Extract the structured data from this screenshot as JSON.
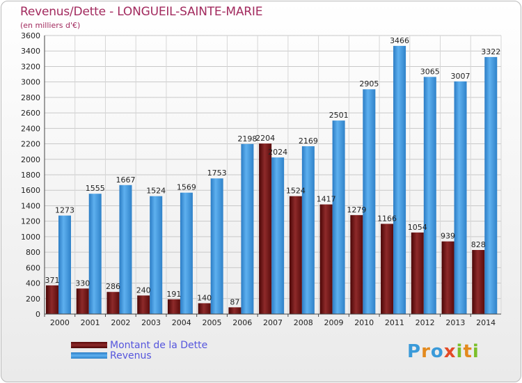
{
  "title": "Revenus/Dette - LONGUEIL-SAINTE-MARIE",
  "subtitle": "(en milliers d'€)",
  "chart_data": {
    "type": "bar",
    "categories": [
      "2000",
      "2001",
      "2002",
      "2003",
      "2004",
      "2005",
      "2006",
      "2007",
      "2008",
      "2009",
      "2010",
      "2011",
      "2012",
      "2013",
      "2014"
    ],
    "series": [
      {
        "name": "Montant de la Dette",
        "color": "#6e1414",
        "values": [
          371,
          330,
          286,
          240,
          191,
          140,
          87,
          2204,
          1524,
          1417,
          1279,
          1166,
          1054,
          939,
          828
        ],
        "labels": [
          "371",
          "330",
          "286",
          "240",
          "191",
          "140",
          "87",
          "2204",
          "1524",
          "1417",
          "1279",
          "1166",
          "1054",
          "939",
          "828"
        ]
      },
      {
        "name": "Revenus",
        "color": "#3b8fd6",
        "values": [
          1273,
          1555,
          1667,
          1524,
          1569,
          1753,
          2198,
          2024,
          2169,
          2501,
          2905,
          3466,
          3065,
          3007,
          3322
        ],
        "labels": [
          "1273",
          "1555",
          "1667",
          "1524",
          "1569",
          "1753",
          "2198",
          "2024",
          "2169",
          "2501",
          "2905",
          "3466",
          "3065",
          "3007",
          "3322"
        ]
      }
    ],
    "ylim": [
      0,
      3600
    ],
    "yticks": [
      0,
      200,
      400,
      600,
      800,
      1000,
      1200,
      1400,
      1600,
      1800,
      2000,
      2200,
      2400,
      2600,
      2800,
      3000,
      3200,
      3400,
      3600
    ],
    "grid": true,
    "legend_position": "bottom-left"
  },
  "legend": {
    "dette_label": "Montant de la Dette",
    "revenus_label": "Revenus"
  },
  "logo": {
    "text": "Proxiti",
    "letters": [
      {
        "ch": "P",
        "color": "#3a9ad9"
      },
      {
        "ch": "r",
        "color": "#e38a1e"
      },
      {
        "ch": "o",
        "color": "#3a9ad9"
      },
      {
        "ch": "x",
        "color": "#e34a26"
      },
      {
        "ch": "i",
        "color": "#7bbf2a"
      },
      {
        "ch": "t",
        "color": "#e38a1e"
      },
      {
        "ch": "i",
        "color": "#7bbf2a"
      }
    ]
  }
}
